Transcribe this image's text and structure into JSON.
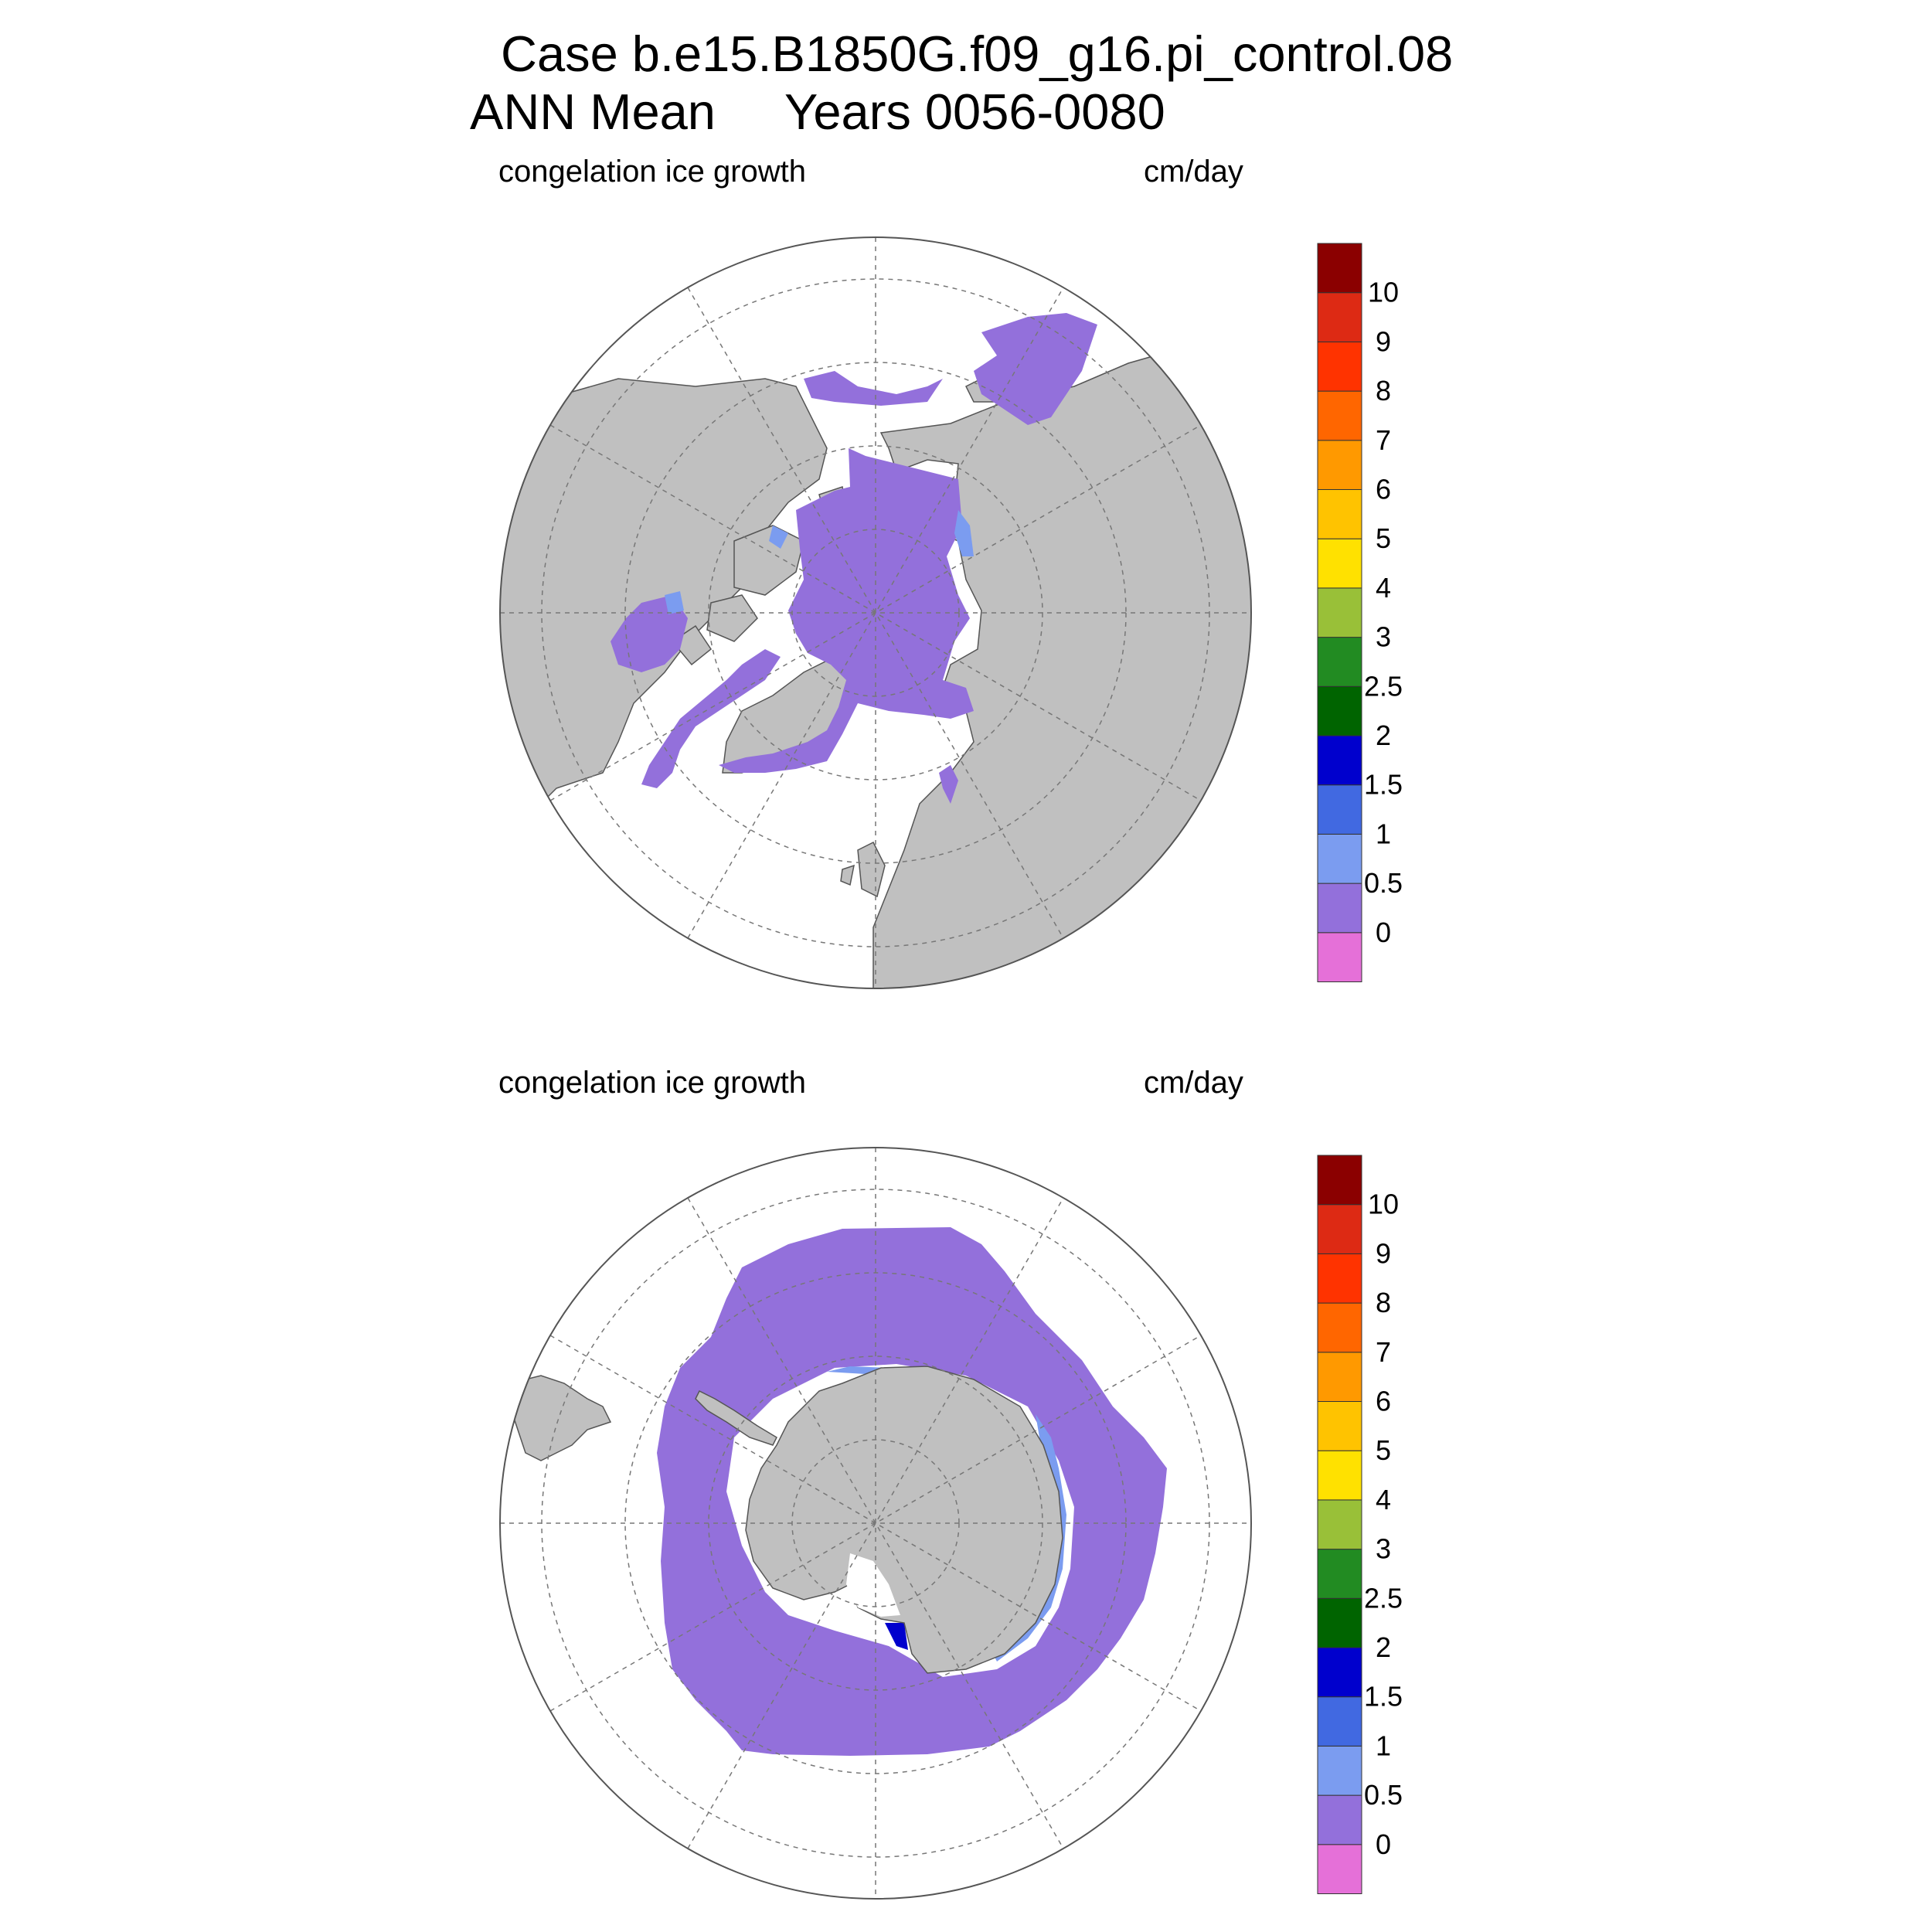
{
  "title": {
    "line1": "Case b.e15.B1850G.f09_g16.pi_control.08",
    "line2": "ANN Mean     Years 0056-0080"
  },
  "panels": [
    {
      "id": "north",
      "left_label": "congelation ice growth",
      "right_label": "cm/day",
      "hemisphere": "Arctic"
    },
    {
      "id": "south",
      "left_label": "congelation ice growth",
      "right_label": "cm/day",
      "hemisphere": "Antarctic"
    }
  ],
  "colorbar": {
    "labels": [
      "0",
      "0.5",
      "1",
      "1.5",
      "2",
      "2.5",
      "3",
      "4",
      "5",
      "6",
      "7",
      "8",
      "9",
      "10"
    ],
    "colors": [
      "#e570d8",
      "#9370db",
      "#7b9cf0",
      "#4169e1",
      "#0000cd",
      "#006400",
      "#228b22",
      "#99c038",
      "#ffe100",
      "#ffc300",
      "#ff9900",
      "#ff6600",
      "#ff3300",
      "#dd2a14",
      "#8b0000"
    ]
  },
  "colors": {
    "land": "#c0c0c0",
    "ocean": "#ffffff",
    "ice_main": "#9370db",
    "ice_edge": "#7b9cf0"
  }
}
